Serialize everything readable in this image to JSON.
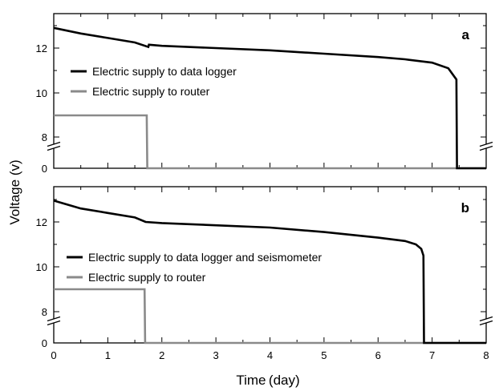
{
  "figure": {
    "ylabel": "Voltage (v)",
    "xlabel": "Time (day)"
  },
  "chart_data": [
    {
      "type": "line",
      "panel_label": "a",
      "xlabel": "Time (day)",
      "ylabel": "Voltage (v)",
      "xlim": [
        0,
        8
      ],
      "xticks": [
        "0",
        "1",
        "2",
        "3",
        "4",
        "5",
        "6",
        "7",
        "8"
      ],
      "yticks": [
        "0",
        "8",
        "10",
        "12"
      ],
      "y_axis_break": "between 0 and 8",
      "colors": {
        "logger": "#000000",
        "router": "#8a8a8a"
      },
      "series": [
        {
          "name": "Electric supply to data logger",
          "x": [
            0,
            0.5,
            1.0,
            1.5,
            1.75,
            1.76,
            2.0,
            3.0,
            4.0,
            5.0,
            6.0,
            6.5,
            7.0,
            7.3,
            7.45,
            7.46,
            7.47,
            8.0
          ],
          "values": [
            12.9,
            12.65,
            12.45,
            12.25,
            12.05,
            12.15,
            12.1,
            12.0,
            11.9,
            11.75,
            11.6,
            11.5,
            11.35,
            11.1,
            10.6,
            0,
            0,
            0
          ]
        },
        {
          "name": "Electric supply to router",
          "x": [
            0,
            1.72,
            1.73,
            8.0
          ],
          "values": [
            9.0,
            9.0,
            0,
            0
          ]
        }
      ]
    },
    {
      "type": "line",
      "panel_label": "b",
      "xlabel": "Time (day)",
      "ylabel": "Voltage (v)",
      "xlim": [
        0,
        8
      ],
      "xticks": [
        "0",
        "1",
        "2",
        "3",
        "4",
        "5",
        "6",
        "7",
        "8"
      ],
      "yticks": [
        "0",
        "8",
        "10",
        "12"
      ],
      "y_axis_break": "between 0 and 8",
      "colors": {
        "logger": "#000000",
        "router": "#8a8a8a"
      },
      "series": [
        {
          "name": "Electric supply to data logger and seismometer",
          "x": [
            0,
            0.5,
            1.0,
            1.5,
            1.7,
            2.0,
            3.0,
            4.0,
            5.0,
            6.0,
            6.5,
            6.7,
            6.8,
            6.84,
            6.85,
            6.86,
            8.0
          ],
          "values": [
            12.95,
            12.6,
            12.4,
            12.2,
            12.0,
            11.95,
            11.85,
            11.75,
            11.55,
            11.3,
            11.15,
            11.0,
            10.8,
            10.5,
            0,
            0,
            0
          ]
        },
        {
          "name": "Electric supply to router",
          "x": [
            0,
            1.68,
            1.69,
            8.0
          ],
          "values": [
            9.0,
            9.0,
            0,
            0
          ]
        }
      ]
    }
  ]
}
